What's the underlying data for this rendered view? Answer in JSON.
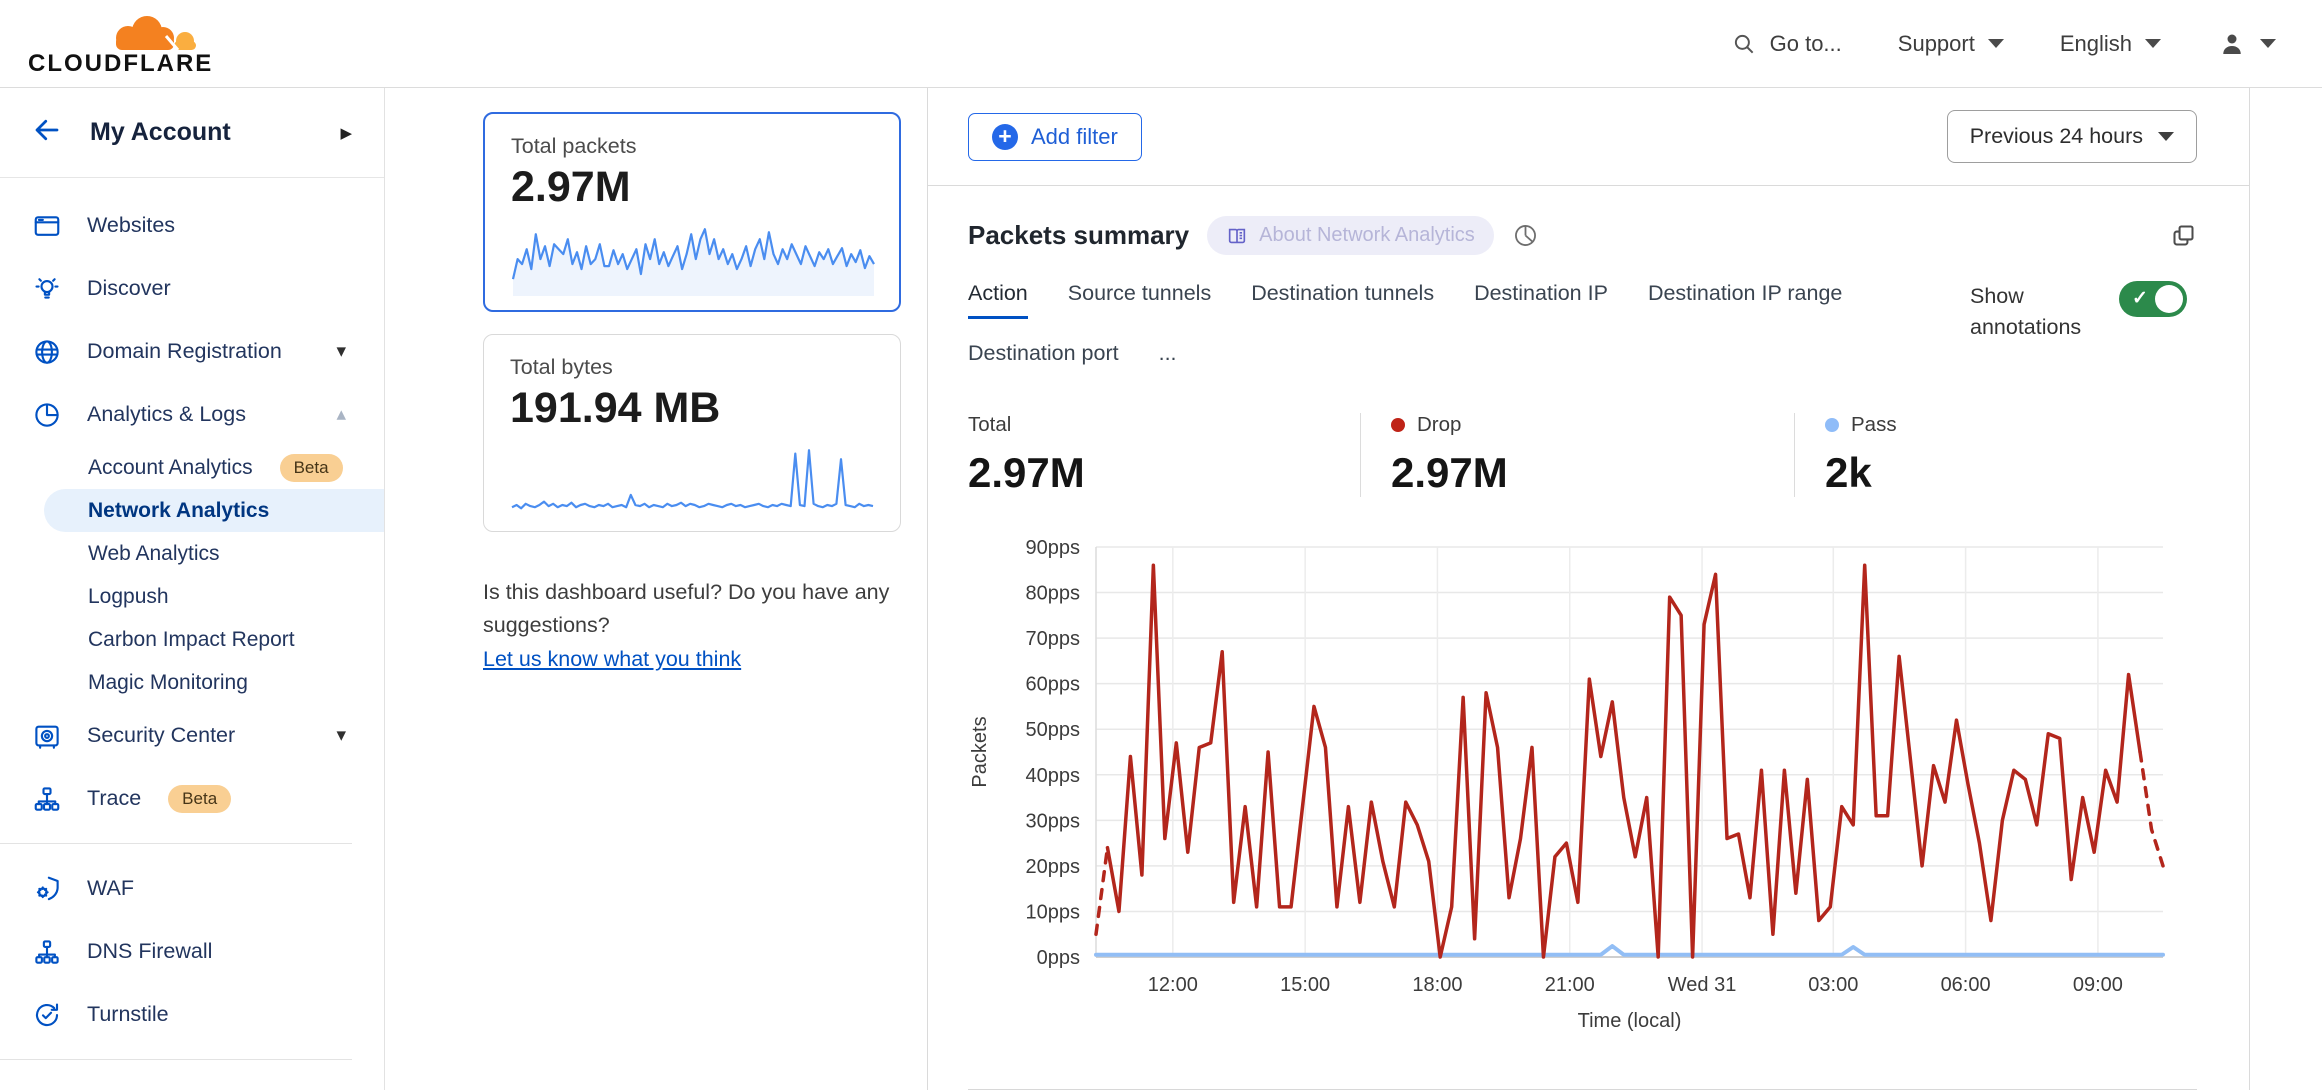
{
  "header": {
    "logo_text": "CLOUDFLARE",
    "search_label": "Go to...",
    "support_label": "Support",
    "language_label": "English"
  },
  "sidebar": {
    "account_label": "My Account",
    "items": [
      {
        "type": "item",
        "label": "Websites",
        "icon": "browser"
      },
      {
        "type": "item",
        "label": "Discover",
        "icon": "lightbulb"
      },
      {
        "type": "item",
        "label": "Domain Registration",
        "icon": "globe",
        "caret": "down"
      },
      {
        "type": "item",
        "label": "Analytics & Logs",
        "icon": "pie",
        "caret": "up"
      },
      {
        "type": "sub",
        "label": "Account Analytics",
        "badge": "Beta"
      },
      {
        "type": "sub",
        "label": "Network Analytics",
        "selected": true
      },
      {
        "type": "sub",
        "label": "Web Analytics"
      },
      {
        "type": "sub",
        "label": "Logpush"
      },
      {
        "type": "sub",
        "label": "Carbon Impact Report"
      },
      {
        "type": "sub",
        "label": "Magic Monitoring"
      },
      {
        "type": "item",
        "label": "Security Center",
        "icon": "safe",
        "caret": "down"
      },
      {
        "type": "item",
        "label": "Trace",
        "icon": "trace",
        "badge": "Beta"
      },
      {
        "type": "divider"
      },
      {
        "type": "item",
        "label": "WAF",
        "icon": "waf"
      },
      {
        "type": "item",
        "label": "DNS Firewall",
        "icon": "dns"
      },
      {
        "type": "item",
        "label": "Turnstile",
        "icon": "turnstile"
      },
      {
        "type": "divider"
      },
      {
        "type": "item",
        "label": "",
        "icon": "sparkle"
      }
    ]
  },
  "summary_cards": [
    {
      "title": "Total packets",
      "value": "2.97M",
      "selected": true
    },
    {
      "title": "Total bytes",
      "value": "191.94 MB",
      "selected": false
    }
  ],
  "feedback": {
    "question": "Is this dashboard useful? Do you have any suggestions?",
    "link_label": "Let us know what you think"
  },
  "main": {
    "add_filter_label": "Add filter",
    "time_range_label": "Previous 24 hours",
    "panel_title": "Packets summary",
    "about_badge_label": "About Network Analytics",
    "tabs": [
      "Action",
      "Source tunnels",
      "Destination tunnels",
      "Destination IP",
      "Destination IP range",
      "Destination port",
      "..."
    ],
    "active_tab": "Action",
    "show_annotations_label": "Show annotations",
    "annotations_on": true,
    "stats": [
      {
        "label": "Total",
        "value": "2.97M",
        "dot": null
      },
      {
        "label": "Drop",
        "value": "2.97M",
        "dot": "#bf2317"
      },
      {
        "label": "Pass",
        "value": "2k",
        "dot": "#8fbcf8"
      }
    ]
  },
  "colors": {
    "accent_blue": "#0051c3",
    "drop_red": "#b3261c",
    "pass_blue": "#92bef5",
    "spark_blue": "#4a8df0",
    "toggle_green": "#2c8a4b",
    "selected_card_border": "#2f6be0"
  },
  "chart_data": {
    "type": "line",
    "title": "Packets summary",
    "xlabel": "Time (local)",
    "ylabel": "Packets",
    "ylim": [
      0,
      90
    ],
    "grid": true,
    "y_tick_labels": [
      "0pps",
      "10pps",
      "20pps",
      "30pps",
      "40pps",
      "50pps",
      "60pps",
      "70pps",
      "80pps",
      "90pps"
    ],
    "x_ticks": [
      {
        "f": 0.072,
        "label": "12:00"
      },
      {
        "f": 0.196,
        "label": "15:00"
      },
      {
        "f": 0.32,
        "label": "18:00"
      },
      {
        "f": 0.444,
        "label": "21:00"
      },
      {
        "f": 0.568,
        "label": "Wed 31"
      },
      {
        "f": 0.691,
        "label": "03:00"
      },
      {
        "f": 0.815,
        "label": "06:00"
      },
      {
        "f": 0.939,
        "label": "09:00"
      }
    ],
    "series": [
      {
        "name": "Drop",
        "color": "#b3261c",
        "dashed_head_segments": 1,
        "dashed_tail_segments": 2,
        "values": [
          5,
          24,
          10,
          44,
          18,
          86,
          26,
          47,
          23,
          46,
          47,
          67,
          12,
          33,
          11,
          45,
          11,
          11,
          33,
          55,
          46,
          11,
          33,
          12,
          34,
          21,
          11,
          34,
          29,
          21,
          0,
          11,
          57,
          4,
          58,
          46,
          13,
          26,
          46,
          0,
          22,
          25,
          12,
          61,
          44,
          56,
          35,
          22,
          35,
          0,
          79,
          75,
          0,
          73,
          84,
          26,
          27,
          13,
          41,
          5,
          41,
          14,
          39,
          8,
          11,
          33,
          29,
          86,
          31,
          31,
          66,
          43,
          20,
          42,
          34,
          52,
          38,
          25,
          8,
          30,
          41,
          39,
          29,
          49,
          48,
          17,
          35,
          23,
          41,
          34,
          62,
          45,
          28,
          20
        ]
      },
      {
        "name": "Pass",
        "color": "#92bef5",
        "baseline": 0.5,
        "bumps": [
          [
            45,
            2.4
          ],
          [
            66,
            2.2
          ]
        ]
      }
    ],
    "sparklines": {
      "total_packets": {
        "color": "#4a8df0",
        "fill": "rgba(90,143,240,0.10)",
        "values": [
          15,
          35,
          30,
          45,
          25,
          60,
          35,
          48,
          28,
          50,
          45,
          40,
          55,
          30,
          42,
          25,
          48,
          30,
          35,
          50,
          28,
          28,
          44,
          30,
          40,
          25,
          35,
          45,
          20,
          50,
          35,
          55,
          30,
          42,
          28,
          38,
          48,
          25,
          40,
          60,
          35,
          55,
          65,
          40,
          55,
          35,
          45,
          30,
          40,
          25,
          35,
          48,
          28,
          45,
          55,
          35,
          62,
          40,
          30,
          45,
          35,
          50,
          40,
          30,
          48,
          38,
          28,
          42,
          35,
          45,
          30,
          38,
          46,
          28,
          40,
          32,
          44,
          26,
          38,
          30
        ]
      },
      "total_bytes": {
        "color": "#4a8df0",
        "fill": null,
        "values": [
          7,
          9,
          6,
          10,
          8,
          7,
          9,
          12,
          8,
          10,
          7,
          9,
          8,
          11,
          7,
          9,
          10,
          8,
          7,
          9,
          8,
          10,
          7,
          8,
          9,
          7,
          18,
          9,
          8,
          10,
          7,
          9,
          8,
          7,
          10,
          8,
          9,
          11,
          8,
          10,
          9,
          7,
          8,
          10,
          9,
          8,
          7,
          9,
          10,
          8,
          9,
          7,
          8,
          9,
          10,
          8,
          7,
          9,
          8,
          10,
          9,
          8,
          55,
          9,
          8,
          58,
          10,
          8,
          7,
          9,
          8,
          10,
          50,
          9,
          8,
          7,
          10,
          8,
          9,
          8
        ]
      }
    }
  }
}
